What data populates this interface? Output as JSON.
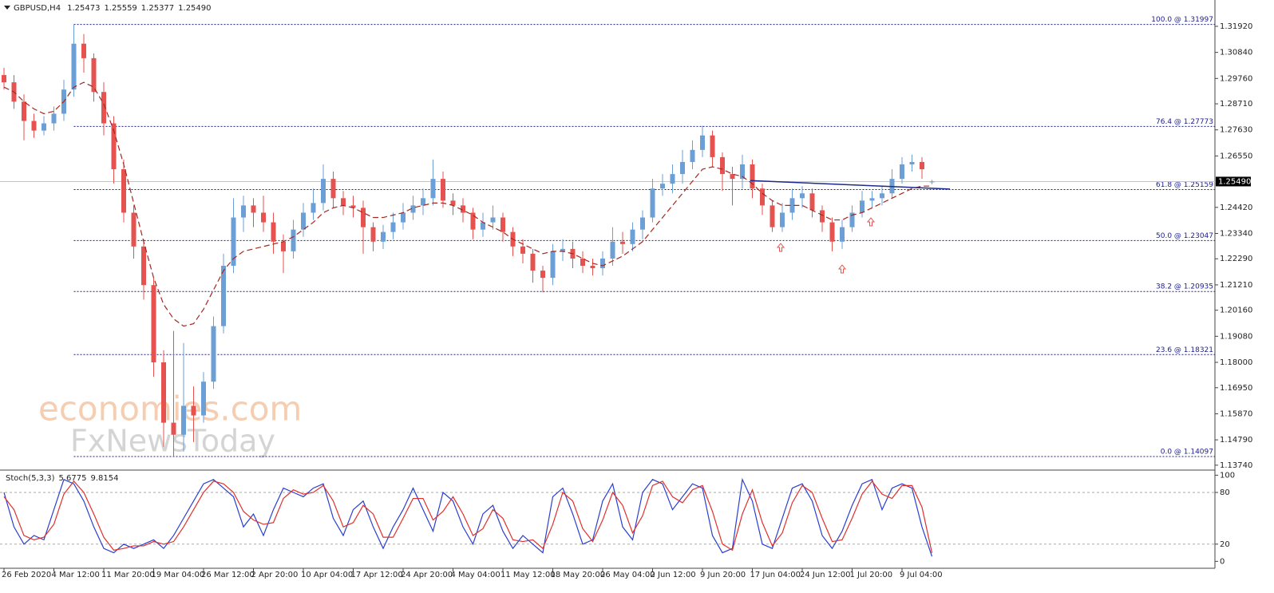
{
  "chart_data": [
    {
      "type": "candlestick",
      "symbol": "GBPUSD,H4",
      "categories": [
        "26 Feb 2020",
        null,
        null,
        null,
        null,
        "4 Mar 12:00",
        null,
        null,
        null,
        null,
        "11 Mar 20:00",
        null,
        null,
        null,
        null,
        "19 Mar 04:00",
        null,
        null,
        null,
        null,
        "26 Mar 12:00",
        null,
        null,
        null,
        null,
        "2 Apr 20:00",
        null,
        null,
        null,
        null,
        "10 Apr 04:00",
        null,
        null,
        null,
        null,
        "17 Apr 12:00",
        null,
        null,
        null,
        null,
        "24 Apr 20:00",
        null,
        null,
        null,
        null,
        "4 May 04:00",
        null,
        null,
        null,
        null,
        "11 May 12:00",
        null,
        null,
        null,
        null,
        "18 May 20:00",
        null,
        null,
        null,
        null,
        "26 May 04:00",
        null,
        null,
        null,
        null,
        "2 Jun 12:00",
        null,
        null,
        null,
        null,
        "9 Jun 20:00",
        null,
        null,
        null,
        null,
        "17 Jun 04:00",
        null,
        null,
        null,
        null,
        "24 Jun 12:00",
        null,
        null,
        null,
        null,
        "1 Jul 20:00",
        null,
        null,
        null,
        null,
        "9 Jul 04:00",
        null,
        null,
        null
      ],
      "open": [
        1.299,
        1.296,
        1.288,
        1.28,
        1.276,
        1.279,
        1.283,
        1.293,
        1.312,
        1.306,
        1.292,
        1.279,
        1.26,
        1.242,
        1.228,
        1.212,
        1.18,
        1.155,
        1.15,
        1.162,
        1.158,
        1.172,
        1.195,
        1.22,
        1.24,
        1.245,
        1.242,
        1.238,
        1.23,
        1.226,
        1.235,
        1.242,
        1.246,
        1.256,
        1.248,
        1.245,
        1.244,
        1.236,
        1.23,
        1.234,
        1.238,
        1.242,
        1.245,
        1.248,
        1.256,
        1.247,
        1.245,
        1.242,
        1.235,
        1.238,
        1.24,
        1.234,
        1.228,
        1.225,
        1.218,
        1.215,
        1.226,
        1.227,
        1.223,
        1.22,
        1.219,
        1.223,
        1.23,
        1.229,
        1.235,
        1.24,
        1.252,
        1.254,
        1.258,
        1.263,
        1.268,
        1.274,
        1.265,
        1.258,
        1.256,
        1.262,
        1.252,
        1.245,
        1.236,
        1.242,
        1.248,
        1.25,
        1.243,
        1.238,
        1.23,
        1.236,
        1.242,
        1.247,
        1.248,
        1.25,
        1.256,
        1.262,
        1.263,
        1.25473
      ],
      "high": [
        1.302,
        1.299,
        1.291,
        1.283,
        1.282,
        1.286,
        1.297,
        1.31997,
        1.316,
        1.308,
        1.296,
        1.282,
        1.264,
        1.245,
        1.231,
        1.215,
        1.185,
        1.193,
        1.188,
        1.17,
        1.176,
        1.199,
        1.225,
        1.248,
        1.249,
        1.248,
        1.249,
        1.242,
        1.233,
        1.239,
        1.246,
        1.252,
        1.262,
        1.259,
        1.251,
        1.249,
        1.247,
        1.238,
        1.237,
        1.242,
        1.246,
        1.249,
        1.252,
        1.264,
        1.259,
        1.25,
        1.248,
        1.244,
        1.242,
        1.245,
        1.242,
        1.236,
        1.231,
        1.227,
        1.22,
        1.229,
        1.231,
        1.23,
        1.226,
        1.223,
        1.226,
        1.236,
        1.234,
        1.238,
        1.243,
        1.256,
        1.258,
        1.262,
        1.268,
        1.272,
        1.278,
        1.276,
        1.267,
        1.261,
        1.266,
        1.264,
        1.254,
        1.247,
        1.246,
        1.252,
        1.253,
        1.252,
        1.245,
        1.24,
        1.239,
        1.245,
        1.251,
        1.251,
        1.253,
        1.26,
        1.265,
        1.266,
        1.265,
        1.25559
      ],
      "low": [
        1.293,
        1.285,
        1.272,
        1.273,
        1.274,
        1.276,
        1.28,
        1.29,
        1.3,
        1.288,
        1.274,
        1.254,
        1.238,
        1.223,
        1.206,
        1.174,
        1.145,
        1.14097,
        1.143,
        1.147,
        1.155,
        1.169,
        1.192,
        1.217,
        1.234,
        1.236,
        1.234,
        1.225,
        1.217,
        1.223,
        1.232,
        1.239,
        1.243,
        1.244,
        1.241,
        1.24,
        1.225,
        1.226,
        1.227,
        1.231,
        1.235,
        1.239,
        1.241,
        1.245,
        1.244,
        1.241,
        1.238,
        1.231,
        1.232,
        1.235,
        1.23,
        1.224,
        1.221,
        1.213,
        1.209,
        1.212,
        1.222,
        1.219,
        1.217,
        1.216,
        1.216,
        1.22,
        1.225,
        1.226,
        1.231,
        1.238,
        1.249,
        1.25,
        1.254,
        1.26,
        1.265,
        1.261,
        1.251,
        1.245,
        1.252,
        1.248,
        1.241,
        1.234,
        1.234,
        1.239,
        1.244,
        1.24,
        1.234,
        1.226,
        1.227,
        1.234,
        1.24,
        1.244,
        1.245,
        1.248,
        1.254,
        1.259,
        1.256,
        1.25377
      ],
      "close": [
        1.296,
        1.288,
        1.28,
        1.276,
        1.279,
        1.283,
        1.293,
        1.312,
        1.306,
        1.292,
        1.279,
        1.26,
        1.242,
        1.228,
        1.212,
        1.18,
        1.155,
        1.15,
        1.162,
        1.158,
        1.172,
        1.195,
        1.22,
        1.24,
        1.245,
        1.242,
        1.238,
        1.23,
        1.226,
        1.235,
        1.242,
        1.246,
        1.256,
        1.248,
        1.245,
        1.244,
        1.236,
        1.23,
        1.234,
        1.238,
        1.242,
        1.245,
        1.248,
        1.256,
        1.247,
        1.245,
        1.242,
        1.235,
        1.238,
        1.24,
        1.234,
        1.228,
        1.225,
        1.218,
        1.215,
        1.226,
        1.227,
        1.223,
        1.22,
        1.219,
        1.223,
        1.23,
        1.229,
        1.235,
        1.24,
        1.252,
        1.254,
        1.258,
        1.263,
        1.268,
        1.274,
        1.265,
        1.258,
        1.256,
        1.262,
        1.252,
        1.245,
        1.236,
        1.242,
        1.248,
        1.25,
        1.243,
        1.238,
        1.23,
        1.236,
        1.242,
        1.247,
        1.248,
        1.25,
        1.256,
        1.262,
        1.263,
        1.26,
        1.2549
      ],
      "close_label": "1.25490",
      "header_labels": [
        "1.25473",
        "1.25559",
        "1.25377",
        "1.25490"
      ],
      "bull_color": "#6b9fd6",
      "bear_color": "#e5524f",
      "ylim": [
        1.1357,
        1.3301
      ],
      "yticks": [
        {
          "value": 1.3192,
          "label": "1.31920"
        },
        {
          "value": 1.3084,
          "label": "1.30840"
        },
        {
          "value": 1.2976,
          "label": "1.29760"
        },
        {
          "value": 1.2871,
          "label": "1.28710"
        },
        {
          "value": 1.2763,
          "label": "1.27630"
        },
        {
          "value": 1.2655,
          "label": "1.26550"
        },
        {
          "value": 1.2442,
          "label": "1.24420"
        },
        {
          "value": 1.2334,
          "label": "1.23340"
        },
        {
          "value": 1.2229,
          "label": "1.22290"
        },
        {
          "value": 1.2121,
          "label": "1.21210"
        },
        {
          "value": 1.2016,
          "label": "1.20160"
        },
        {
          "value": 1.1908,
          "label": "1.19080"
        },
        {
          "value": 1.18,
          "label": "1.18000"
        },
        {
          "value": 1.1695,
          "label": "1.16950"
        },
        {
          "value": 1.1587,
          "label": "1.15870"
        },
        {
          "value": 1.1479,
          "label": "1.14790"
        },
        {
          "value": 1.1374,
          "label": "1.13740"
        }
      ],
      "ma": {
        "color": "#a3281f",
        "values": [
          1.294,
          1.292,
          1.288,
          1.285,
          1.283,
          1.284,
          1.288,
          1.294,
          1.296,
          1.294,
          1.287,
          1.276,
          1.262,
          1.246,
          1.23,
          1.215,
          1.204,
          1.198,
          1.195,
          1.196,
          1.202,
          1.21,
          1.218,
          1.223,
          1.226,
          1.227,
          1.228,
          1.229,
          1.23,
          1.232,
          1.235,
          1.238,
          1.242,
          1.244,
          1.245,
          1.244,
          1.242,
          1.24,
          1.24,
          1.241,
          1.242,
          1.244,
          1.245,
          1.246,
          1.246,
          1.245,
          1.243,
          1.241,
          1.238,
          1.236,
          1.234,
          1.231,
          1.229,
          1.227,
          1.225,
          1.226,
          1.226,
          1.225,
          1.223,
          1.221,
          1.22,
          1.222,
          1.224,
          1.227,
          1.23,
          1.235,
          1.24,
          1.245,
          1.25,
          1.255,
          1.26,
          1.261,
          1.26,
          1.258,
          1.257,
          1.254,
          1.25,
          1.247,
          1.245,
          1.245,
          1.245,
          1.243,
          1.241,
          1.239,
          1.239,
          1.241,
          1.242,
          1.244,
          1.246,
          1.248,
          1.25,
          1.252,
          1.253,
          1.253
        ]
      },
      "fib_color": "#1c1c8c",
      "fib_levels": [
        {
          "value": 1.31997,
          "label": "100.0 @ 1.31997"
        },
        {
          "value": 1.27773,
          "label": "76.4 @ 1.27773"
        },
        {
          "value": 1.25159,
          "label": "61.8 @ 1.25159"
        },
        {
          "value": 1.23047,
          "label": "50.0 @ 1.23047"
        },
        {
          "value": 1.20935,
          "label": "38.2 @ 1.20935"
        },
        {
          "value": 1.18321,
          "label": "23.6 @ 1.18321"
        },
        {
          "value": 1.14097,
          "label": "0.0 @ 1.14097"
        }
      ],
      "trendline": {
        "color": "#1c2a8c",
        "values": [
          1.2553,
          1.2518
        ]
      },
      "last_price_color": "#a9cde9",
      "watermark": [
        "economies.com",
        "FxNewsToday"
      ]
    },
    {
      "type": "stochastic",
      "title": "Stoch(5,3,3)",
      "header_labels": [
        "5.6775",
        "9.8154"
      ],
      "series": [
        {
          "color": "#2a3fd0",
          "values": [
            80,
            40,
            20,
            30,
            25,
            60,
            95,
            90,
            70,
            40,
            15,
            10,
            20,
            15,
            20,
            25,
            15,
            30,
            50,
            70,
            90,
            95,
            85,
            75,
            40,
            55,
            30,
            60,
            85,
            80,
            75,
            85,
            90,
            50,
            30,
            60,
            70,
            40,
            15,
            40,
            60,
            85,
            60,
            35,
            80,
            70,
            40,
            20,
            55,
            65,
            35,
            15,
            30,
            20,
            10,
            75,
            85,
            55,
            20,
            25,
            70,
            90,
            40,
            25,
            80,
            95,
            90,
            60,
            75,
            90,
            85,
            30,
            10,
            15,
            95,
            70,
            20,
            15,
            50,
            85,
            90,
            70,
            30,
            15,
            35,
            65,
            90,
            95,
            60,
            85,
            90,
            85,
            40,
            5.6775
          ]
        },
        {
          "color": "#e0302c",
          "values": [
            75,
            60,
            30,
            25,
            28,
            43,
            78,
            93,
            80,
            55,
            28,
            13,
            15,
            18,
            18,
            23,
            20,
            23,
            40,
            60,
            80,
            93,
            90,
            80,
            58,
            48,
            43,
            45,
            73,
            83,
            78,
            80,
            88,
            70,
            40,
            45,
            65,
            55,
            28,
            28,
            50,
            73,
            73,
            48,
            58,
            75,
            55,
            30,
            38,
            60,
            50,
            25,
            23,
            25,
            15,
            43,
            80,
            70,
            38,
            23,
            48,
            80,
            65,
            33,
            53,
            88,
            93,
            75,
            68,
            83,
            88,
            58,
            20,
            13,
            55,
            83,
            45,
            18,
            33,
            68,
            88,
            80,
            50,
            23,
            25,
            50,
            78,
            93,
            78,
            73,
            88,
            88,
            63,
            9.8154
          ]
        }
      ],
      "ylim": [
        -8,
        105
      ],
      "yticks": [
        100,
        80,
        20,
        0
      ],
      "levels": [
        80,
        20
      ]
    }
  ]
}
